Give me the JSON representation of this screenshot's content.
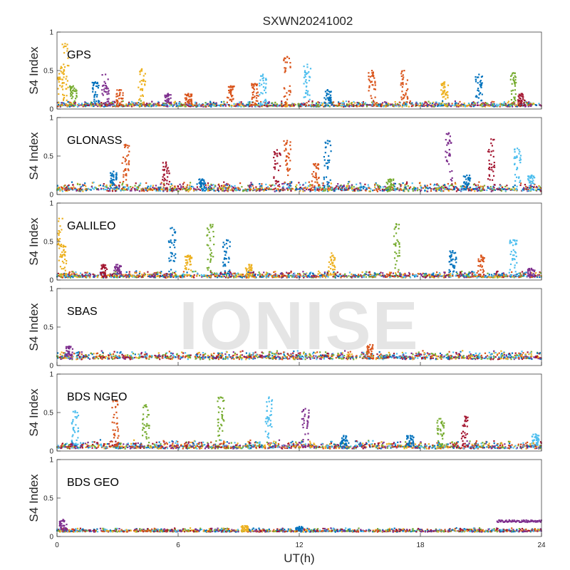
{
  "figure": {
    "title": "SXWN20241002",
    "xlabel": "UT(h)",
    "watermark": "IONISE",
    "plot_background": "#ffffff",
    "axes_color": "#262626",
    "series_colors": [
      "#0072BD",
      "#D95319",
      "#EDB120",
      "#7E2F8E",
      "#77AC30",
      "#4DBEEE",
      "#A2142F"
    ]
  },
  "chart_data": [
    {
      "type": "scatter",
      "name": "GPS",
      "ylabel": "S4 Index",
      "xlim": [
        0,
        24
      ],
      "ylim": [
        0,
        1
      ],
      "xticks": [
        0,
        6,
        12,
        18,
        24
      ],
      "yticks": [
        0,
        0.5,
        1
      ],
      "ytick_labels": [
        "0",
        "0.5",
        "1"
      ],
      "baseline": [
        0.03,
        0.09
      ],
      "bursts": [
        [
          0.2,
          0.55,
          "#EDB120"
        ],
        [
          0.4,
          0.85,
          "#EDB120"
        ],
        [
          0.8,
          0.3,
          "#77AC30"
        ],
        [
          1.9,
          0.35,
          "#0072BD"
        ],
        [
          2.4,
          0.45,
          "#7E2F8E"
        ],
        [
          3.1,
          0.25,
          "#D95319"
        ],
        [
          4.2,
          0.52,
          "#EDB120"
        ],
        [
          5.5,
          0.2,
          "#7E2F8E"
        ],
        [
          6.5,
          0.2,
          "#D95319"
        ],
        [
          8.6,
          0.3,
          "#D95319"
        ],
        [
          9.8,
          0.33,
          "#D95319"
        ],
        [
          10.2,
          0.45,
          "#4DBEEE"
        ],
        [
          11.4,
          0.68,
          "#D95319"
        ],
        [
          12.4,
          0.58,
          "#4DBEEE"
        ],
        [
          13.4,
          0.25,
          "#0072BD"
        ],
        [
          15.6,
          0.5,
          "#D95319"
        ],
        [
          17.2,
          0.5,
          "#D95319"
        ],
        [
          19.2,
          0.35,
          "#EDB120"
        ],
        [
          20.9,
          0.45,
          "#0072BD"
        ],
        [
          22.6,
          0.47,
          "#77AC30"
        ],
        [
          23.0,
          0.2,
          "#A2142F"
        ]
      ]
    },
    {
      "type": "scatter",
      "name": "GLONASS",
      "ylabel": "S4 Index",
      "xlim": [
        0,
        24
      ],
      "ylim": [
        0,
        1
      ],
      "xticks": [
        0,
        6,
        12,
        18,
        24
      ],
      "yticks": [
        0,
        0.5,
        1
      ],
      "ytick_labels": [
        "0",
        "0.5",
        "1"
      ],
      "baseline": [
        0.04,
        0.14
      ],
      "bursts": [
        [
          3.4,
          0.65,
          "#D95319"
        ],
        [
          2.8,
          0.3,
          "#0072BD"
        ],
        [
          5.4,
          0.42,
          "#A2142F"
        ],
        [
          7.2,
          0.2,
          "#0072BD"
        ],
        [
          11.4,
          0.7,
          "#D95319"
        ],
        [
          10.9,
          0.58,
          "#A2142F"
        ],
        [
          13.4,
          0.7,
          "#0072BD"
        ],
        [
          12.8,
          0.4,
          "#D95319"
        ],
        [
          16.5,
          0.2,
          "#77AC30"
        ],
        [
          19.4,
          0.8,
          "#7E2F8E"
        ],
        [
          20.3,
          0.25,
          "#0072BD"
        ],
        [
          21.5,
          0.72,
          "#A2142F"
        ],
        [
          22.8,
          0.6,
          "#4DBEEE"
        ],
        [
          23.5,
          0.25,
          "#4DBEEE"
        ]
      ]
    },
    {
      "type": "scatter",
      "name": "GALILEO",
      "ylabel": "S4 Index",
      "xlim": [
        0,
        24
      ],
      "ylim": [
        0,
        1
      ],
      "xticks": [
        0,
        6,
        12,
        18,
        24
      ],
      "yticks": [
        0,
        0.5,
        1
      ],
      "ytick_labels": [
        "0",
        "0.5",
        "1"
      ],
      "baseline": [
        0.03,
        0.1
      ],
      "bursts": [
        [
          0.1,
          0.8,
          "#EDB120"
        ],
        [
          0.3,
          0.45,
          "#EDB120"
        ],
        [
          2.3,
          0.2,
          "#A2142F"
        ],
        [
          3.0,
          0.2,
          "#7E2F8E"
        ],
        [
          5.7,
          0.68,
          "#0072BD"
        ],
        [
          6.5,
          0.32,
          "#EDB120"
        ],
        [
          7.6,
          0.72,
          "#77AC30"
        ],
        [
          8.4,
          0.52,
          "#0072BD"
        ],
        [
          9.5,
          0.2,
          "#EDB120"
        ],
        [
          13.6,
          0.35,
          "#EDB120"
        ],
        [
          16.8,
          0.73,
          "#77AC30"
        ],
        [
          19.6,
          0.38,
          "#0072BD"
        ],
        [
          21.0,
          0.32,
          "#D95319"
        ],
        [
          22.6,
          0.52,
          "#4DBEEE"
        ],
        [
          23.5,
          0.15,
          "#7E2F8E"
        ]
      ]
    },
    {
      "type": "scatter",
      "name": "SBAS",
      "ylabel": "S4 Index",
      "xlim": [
        0,
        24
      ],
      "ylim": [
        0,
        1
      ],
      "xticks": [
        0,
        6,
        12,
        18,
        24
      ],
      "yticks": [
        0,
        0.5,
        1
      ],
      "ytick_labels": [
        "0",
        "0.5",
        "1"
      ],
      "baseline": [
        0.08,
        0.17
      ],
      "bursts": [
        [
          0.6,
          0.25,
          "#7E2F8E"
        ],
        [
          15.5,
          0.27,
          "#D95319"
        ]
      ]
    },
    {
      "type": "scatter",
      "name": "BDS NGEO",
      "ylabel": "S4 Index",
      "xlim": [
        0,
        24
      ],
      "ylim": [
        0,
        1
      ],
      "xticks": [
        0,
        6,
        12,
        18,
        24
      ],
      "yticks": [
        0,
        0.5,
        1
      ],
      "ytick_labels": [
        "0",
        "0.5",
        "1"
      ],
      "baseline": [
        0.03,
        0.12
      ],
      "bursts": [
        [
          0.9,
          0.52,
          "#4DBEEE"
        ],
        [
          2.9,
          0.65,
          "#D95319"
        ],
        [
          4.4,
          0.6,
          "#77AC30"
        ],
        [
          8.1,
          0.7,
          "#77AC30"
        ],
        [
          10.5,
          0.7,
          "#4DBEEE"
        ],
        [
          12.3,
          0.55,
          "#7E2F8E"
        ],
        [
          14.2,
          0.2,
          "#0072BD"
        ],
        [
          17.5,
          0.2,
          "#0072BD"
        ],
        [
          19.0,
          0.42,
          "#77AC30"
        ],
        [
          20.2,
          0.45,
          "#A2142F"
        ],
        [
          23.7,
          0.22,
          "#4DBEEE"
        ]
      ]
    },
    {
      "type": "scatter",
      "name": "BDS GEO",
      "ylabel": "S4 Index",
      "xlim": [
        0,
        24
      ],
      "ylim": [
        0,
        1
      ],
      "xticks": [
        0,
        6,
        12,
        18,
        24
      ],
      "xtick_labels": [
        "0",
        "6",
        "12",
        "18",
        "24"
      ],
      "yticks": [
        0,
        0.5,
        1
      ],
      "ytick_labels": [
        "0",
        "0.5",
        "1"
      ],
      "baseline": [
        0.06,
        0.1
      ],
      "bursts": [
        [
          0.3,
          0.22,
          "#7E2F8E"
        ],
        [
          9.3,
          0.14,
          "#EDB120"
        ],
        [
          12.0,
          0.13,
          "#0072BD"
        ]
      ],
      "segments": [
        [
          21.8,
          24.0,
          0.2,
          "#7E2F8E"
        ]
      ]
    }
  ]
}
